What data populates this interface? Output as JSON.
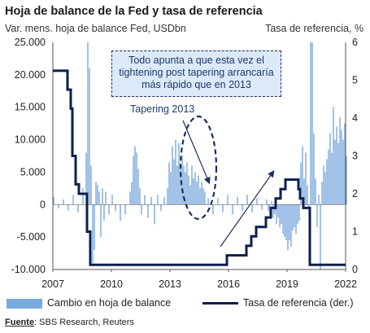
{
  "title": "Hoja de balance de la Fed y tasa de referencia",
  "subtitle_left": "Var. mens. hoja de balance Fed, USDbn",
  "subtitle_right": "Tasa de referencia, %",
  "annotation": {
    "box_lines": [
      "Todo apunta a que esta vez el",
      "tightening post tapering arrancaría",
      "más rápido que en 2013"
    ],
    "tapering_label": "Tapering 2013"
  },
  "legend": {
    "bars": "Cambio en hoja de balance",
    "line": "Tasa de referencia (der.)"
  },
  "source": {
    "label": "Fuente",
    "text": ": SBS Research, Reuters"
  },
  "colors": {
    "bars": "#7aa9df",
    "line": "#0b1f4d",
    "box_fill": "#dce9f8"
  },
  "chart_data": {
    "type": "bar+line",
    "x_ticks": [
      "2007",
      "2010",
      "2013",
      "2016",
      "2019",
      "2022"
    ],
    "y_left": {
      "ylim": [
        -10000,
        25000
      ],
      "ticks": [
        "-10.000",
        "-5.000",
        "0",
        "5.000",
        "10.000",
        "15.000",
        "20.000",
        "25.000"
      ]
    },
    "y_right": {
      "ylim": [
        0,
        6
      ],
      "ticks": [
        "0",
        "1",
        "2",
        "3",
        "4",
        "5",
        "6"
      ]
    },
    "series": [
      {
        "name": "Cambio en hoja de balance",
        "type": "bar",
        "axis": "left",
        "points": [
          [
            "2007-01",
            1200
          ],
          [
            "2007-04",
            -600
          ],
          [
            "2007-07",
            800
          ],
          [
            "2007-10",
            -900
          ],
          [
            "2008-01",
            1500
          ],
          [
            "2008-04",
            -1200
          ],
          [
            "2008-07",
            2500
          ],
          [
            "2008-09",
            8000
          ],
          [
            "2008-10",
            25000
          ],
          [
            "2008-11",
            21000
          ],
          [
            "2008-12",
            6000
          ],
          [
            "2009-01",
            -9000
          ],
          [
            "2009-02",
            -7000
          ],
          [
            "2009-03",
            3500
          ],
          [
            "2009-04",
            3000
          ],
          [
            "2009-05",
            2000
          ],
          [
            "2009-06",
            -5000
          ],
          [
            "2009-07",
            2500
          ],
          [
            "2009-08",
            -2500
          ],
          [
            "2009-09",
            2000
          ],
          [
            "2009-11",
            -1500
          ],
          [
            "2010-01",
            1500
          ],
          [
            "2010-03",
            -1000
          ],
          [
            "2010-06",
            -2500
          ],
          [
            "2010-09",
            -1500
          ],
          [
            "2010-12",
            2000
          ],
          [
            "2011-01",
            3500
          ],
          [
            "2011-02",
            7500
          ],
          [
            "2011-03",
            9000
          ],
          [
            "2011-04",
            8000
          ],
          [
            "2011-05",
            5500
          ],
          [
            "2011-06",
            2500
          ],
          [
            "2011-07",
            -1500
          ],
          [
            "2011-09",
            1500
          ],
          [
            "2011-11",
            -2000
          ],
          [
            "2012-01",
            1200
          ],
          [
            "2012-03",
            -3000
          ],
          [
            "2012-05",
            1500
          ],
          [
            "2012-07",
            -1000
          ],
          [
            "2012-09",
            1200
          ],
          [
            "2012-11",
            2500
          ],
          [
            "2012-12",
            6500
          ],
          [
            "2013-01",
            5000
          ],
          [
            "2013-02",
            9000
          ],
          [
            "2013-03",
            7000
          ],
          [
            "2013-04",
            10000
          ],
          [
            "2013-05",
            6000
          ],
          [
            "2013-06",
            9500
          ],
          [
            "2013-07",
            5500
          ],
          [
            "2013-08",
            7500
          ],
          [
            "2013-09",
            6000
          ],
          [
            "2013-10",
            5000
          ],
          [
            "2013-11",
            6500
          ],
          [
            "2013-12",
            4500
          ],
          [
            "2014-01",
            3000
          ],
          [
            "2014-02",
            6000
          ],
          [
            "2014-03",
            4000
          ],
          [
            "2014-04",
            5000
          ],
          [
            "2014-05",
            3500
          ],
          [
            "2014-06",
            4500
          ],
          [
            "2014-07",
            2500
          ],
          [
            "2014-08",
            3500
          ],
          [
            "2014-09",
            2500
          ],
          [
            "2014-10",
            2000
          ],
          [
            "2014-12",
            1000
          ],
          [
            "2015-03",
            -1500
          ],
          [
            "2015-06",
            1000
          ],
          [
            "2015-09",
            -1200
          ],
          [
            "2015-12",
            1500
          ],
          [
            "2016-03",
            -1500
          ],
          [
            "2016-06",
            1200
          ],
          [
            "2016-09",
            -1000
          ],
          [
            "2016-12",
            1500
          ],
          [
            "2017-03",
            -1200
          ],
          [
            "2017-06",
            1000
          ],
          [
            "2017-09",
            -800
          ],
          [
            "2017-12",
            800
          ],
          [
            "2018-01",
            -1000
          ],
          [
            "2018-02",
            -1500
          ],
          [
            "2018-03",
            500
          ],
          [
            "2018-04",
            -2000
          ],
          [
            "2018-05",
            -1500
          ],
          [
            "2018-06",
            -3000
          ],
          [
            "2018-07",
            -2000
          ],
          [
            "2018-08",
            -3500
          ],
          [
            "2018-09",
            -3000
          ],
          [
            "2018-10",
            -4500
          ],
          [
            "2018-11",
            -5000
          ],
          [
            "2018-12",
            -5500
          ],
          [
            "2019-01",
            -7000
          ],
          [
            "2019-02",
            -5500
          ],
          [
            "2019-03",
            -6500
          ],
          [
            "2019-04",
            -4000
          ],
          [
            "2019-05",
            -3500
          ],
          [
            "2019-06",
            -4500
          ],
          [
            "2019-07",
            -3000
          ],
          [
            "2019-08",
            -2500
          ],
          [
            "2019-09",
            6500
          ],
          [
            "2019-10",
            9000
          ],
          [
            "2019-11",
            4000
          ],
          [
            "2019-12",
            8000
          ],
          [
            "2020-01",
            3000
          ],
          [
            "2020-02",
            -1500
          ],
          [
            "2020-03",
            25000
          ],
          [
            "2020-04",
            25000
          ],
          [
            "2020-05",
            11000
          ],
          [
            "2020-06",
            4000
          ],
          [
            "2020-07",
            -3500
          ],
          [
            "2020-08",
            1500
          ],
          [
            "2020-09",
            -10000
          ],
          [
            "2020-10",
            3500
          ],
          [
            "2020-11",
            6000
          ],
          [
            "2020-12",
            5000
          ],
          [
            "2021-01",
            7000
          ],
          [
            "2021-02",
            8500
          ],
          [
            "2021-03",
            11000
          ],
          [
            "2021-04",
            8000
          ],
          [
            "2021-05",
            15000
          ],
          [
            "2021-06",
            10000
          ],
          [
            "2021-07",
            12000
          ],
          [
            "2021-08",
            9500
          ],
          [
            "2021-09",
            13500
          ],
          [
            "2021-10",
            11500
          ],
          [
            "2021-11",
            10000
          ],
          [
            "2021-12",
            12500
          ],
          [
            "2022-01",
            7500
          ]
        ]
      },
      {
        "name": "Tasa de referencia (der.)",
        "type": "step-line",
        "axis": "right",
        "points": [
          [
            "2007-01",
            5.25
          ],
          [
            "2007-09",
            5.25
          ],
          [
            "2007-10",
            4.75
          ],
          [
            "2007-12",
            4.25
          ],
          [
            "2008-01",
            3.0
          ],
          [
            "2008-03",
            2.25
          ],
          [
            "2008-05",
            2.0
          ],
          [
            "2008-10",
            1.0
          ],
          [
            "2008-12",
            0.125
          ],
          [
            "2015-12",
            0.375
          ],
          [
            "2016-12",
            0.625
          ],
          [
            "2017-03",
            0.875
          ],
          [
            "2017-06",
            1.125
          ],
          [
            "2017-12",
            1.375
          ],
          [
            "2018-03",
            1.625
          ],
          [
            "2018-06",
            1.875
          ],
          [
            "2018-09",
            2.125
          ],
          [
            "2018-12",
            2.375
          ],
          [
            "2019-08",
            2.125
          ],
          [
            "2019-09",
            1.875
          ],
          [
            "2019-11",
            1.625
          ],
          [
            "2020-03",
            0.125
          ],
          [
            "2022-01",
            0.125
          ]
        ]
      }
    ]
  }
}
